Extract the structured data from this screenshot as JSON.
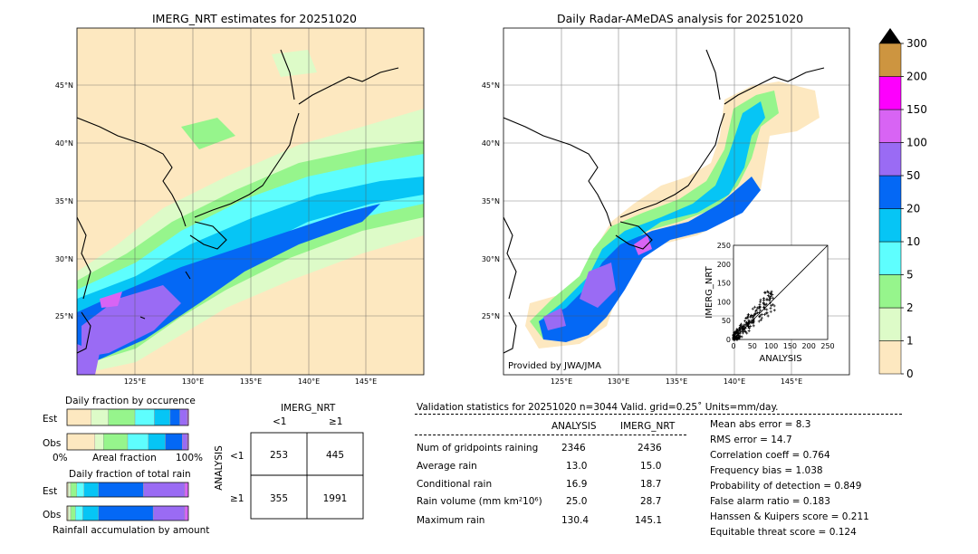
{
  "left_map": {
    "title": "IMERG_NRT estimates for 20251020",
    "lat_labels": [
      "45°N",
      "40°N",
      "35°N",
      "30°N",
      "25°N"
    ],
    "lon_labels": [
      "125°E",
      "130°E",
      "135°E",
      "140°E",
      "145°E"
    ]
  },
  "right_map": {
    "title": "Daily Radar-AMeDAS analysis for 20251020",
    "lat_labels": [
      "45°N",
      "40°N",
      "35°N",
      "30°N",
      "25°N"
    ],
    "lon_labels": [
      "125°E",
      "130°E",
      "135°E",
      "140°E",
      "145°E"
    ],
    "credit": "Provided by JWA/JMA"
  },
  "colorbar": {
    "labels": [
      "0",
      "1",
      "2",
      "5",
      "10",
      "20",
      "50",
      "100",
      "150",
      "200",
      "300"
    ],
    "colors": [
      "#fde8c0",
      "#ddfbc8",
      "#96f58c",
      "#5efefe",
      "#06c5f5",
      "#0468f5",
      "#9a6bf4",
      "#d864f4",
      "#fd00fd",
      "#cd9540"
    ],
    "extend_color": "#000000"
  },
  "scatter": {
    "xlabel": "ANALYSIS",
    "ylabel": "IMERG_NRT",
    "ticks": [
      "0",
      "50",
      "100",
      "150",
      "200",
      "250"
    ]
  },
  "occurrence": {
    "title": "Daily fraction by occurence",
    "row_labels": [
      "Est",
      "Obs"
    ],
    "axis_labels": [
      "0%",
      "Areal fraction",
      "100%"
    ]
  },
  "total_rain": {
    "title": "Daily fraction of total rain",
    "row_labels": [
      "Est",
      "Obs"
    ],
    "caption": "Rainfall accumulation by amount"
  },
  "contingency": {
    "col_title": "IMERG_NRT",
    "col_labels": [
      "<1",
      "≥1"
    ],
    "row_title": "ANALYSIS",
    "row_labels": [
      "<1",
      "≥1"
    ],
    "cells": [
      [
        "253",
        "445"
      ],
      [
        "355",
        "1991"
      ]
    ]
  },
  "validation": {
    "header": "Validation statistics for 20251020  n=3044 Valid. grid=0.25˚ Units=mm/day.",
    "col_analysis": "ANALYSIS",
    "col_imerg": "IMERG_NRT",
    "rows": [
      {
        "label": "Num of gridpoints raining",
        "analysis": "2346",
        "imerg": "2436"
      },
      {
        "label": "Average rain",
        "analysis": "13.0",
        "imerg": "15.0"
      },
      {
        "label": "Conditional rain",
        "analysis": "16.9",
        "imerg": "18.7"
      },
      {
        "label": "Rain volume (mm km²10⁶)",
        "analysis": "25.0",
        "imerg": "28.7"
      },
      {
        "label": "Maximum rain",
        "analysis": "130.4",
        "imerg": "145.1"
      }
    ],
    "scores": [
      "Mean abs error =    8.3",
      "RMS error =   14.7",
      "Correlation coeff =  0.764",
      "Frequency bias =  1.038",
      "Probability of detection =  0.849",
      "False alarm ratio =  0.183",
      "Hanssen & Kuipers score =  0.211",
      "Equitable threat score =  0.124"
    ]
  },
  "chart_data": [
    {
      "type": "heatmap",
      "title": "IMERG_NRT estimates for 20251020",
      "x_range_deg_e": [
        120,
        150
      ],
      "y_range_deg_n": [
        20,
        50
      ],
      "levels_mm_per_day": [
        0,
        1,
        2,
        5,
        10,
        20,
        50,
        100,
        150,
        200,
        300
      ]
    },
    {
      "type": "heatmap",
      "title": "Daily Radar-AMeDAS analysis for 20251020",
      "x_range_deg_e": [
        120,
        150
      ],
      "y_range_deg_n": [
        20,
        50
      ],
      "levels_mm_per_day": [
        0,
        1,
        2,
        5,
        10,
        20,
        50,
        100,
        150,
        200,
        300
      ]
    },
    {
      "type": "scatter",
      "xlabel": "ANALYSIS",
      "ylabel": "IMERG_NRT",
      "xlim": [
        0,
        250
      ],
      "ylim": [
        0,
        250
      ],
      "n": 3044,
      "correlation": 0.764
    },
    {
      "type": "bar",
      "title": "Daily fraction by occurence",
      "categories": [
        "Est",
        "Obs"
      ],
      "series_colors": [
        "#fde8c0",
        "#ddfbc8",
        "#96f58c",
        "#5efefe",
        "#06c5f5",
        "#0468f5",
        "#9a6bf4",
        "#d864f4"
      ],
      "fractions": {
        "Est": [
          0.2,
          0.14,
          0.22,
          0.16,
          0.13,
          0.08,
          0.06,
          0.01
        ],
        "Obs": [
          0.23,
          0.07,
          0.2,
          0.17,
          0.14,
          0.14,
          0.04,
          0.01
        ]
      }
    },
    {
      "type": "bar",
      "title": "Daily fraction of total rain",
      "categories": [
        "Est",
        "Obs"
      ],
      "series_colors": [
        "#fde8c0",
        "#ddfbc8",
        "#96f58c",
        "#5efefe",
        "#06c5f5",
        "#0468f5",
        "#9a6bf4",
        "#d864f4"
      ],
      "fractions": {
        "Est": [
          0.01,
          0.02,
          0.05,
          0.06,
          0.12,
          0.37,
          0.34,
          0.03
        ],
        "Obs": [
          0.01,
          0.02,
          0.04,
          0.06,
          0.13,
          0.45,
          0.26,
          0.03
        ]
      }
    }
  ]
}
